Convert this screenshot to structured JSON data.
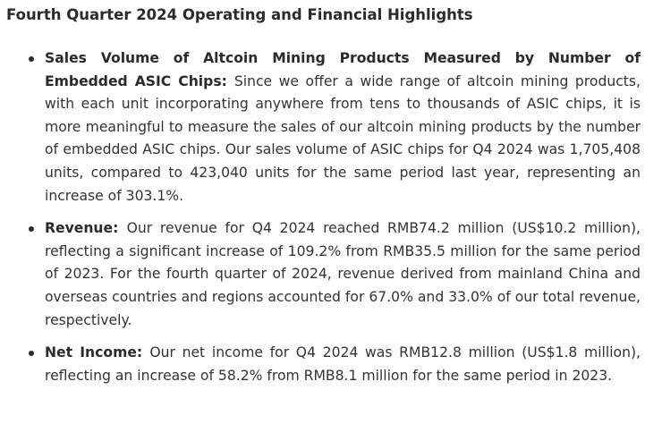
{
  "heading": "Fourth Quarter 2024 Operating and Financial Highlights",
  "bullets": [
    {
      "term": "Sales Volume of Altcoin Mining Products Measured by Number of Embedded ASIC Chips:",
      "text": "Since we offer a wide range of altcoin mining products, with each unit incorporating anywhere from tens to thousands of ASIC chips, it is more meaningful to measure the sales of our altcoin mining products by the number of embedded ASIC chips. Our sales volume of ASIC chips for Q4 2024 was 1,705,408 units, compared to 423,040 units for the same period last year, representing an increase of 303.1%."
    },
    {
      "term": "Revenue:",
      "text": "Our revenue for Q4 2024 reached RMB74.2 million (US$10.2 million), reflecting a significant increase of 109.2% from RMB35.5 million for the same period of 2023. For the fourth quarter of 2024, revenue derived from mainland China and overseas countries and regions accounted for 67.0% and 33.0% of our total revenue, respectively."
    },
    {
      "term": "Net Income:",
      "text": "Our net income for Q4 2024 was RMB12.8 million (US$1.8 million), reflecting an increase of 58.2% from RMB8.1 million for the same period in 2023."
    }
  ]
}
